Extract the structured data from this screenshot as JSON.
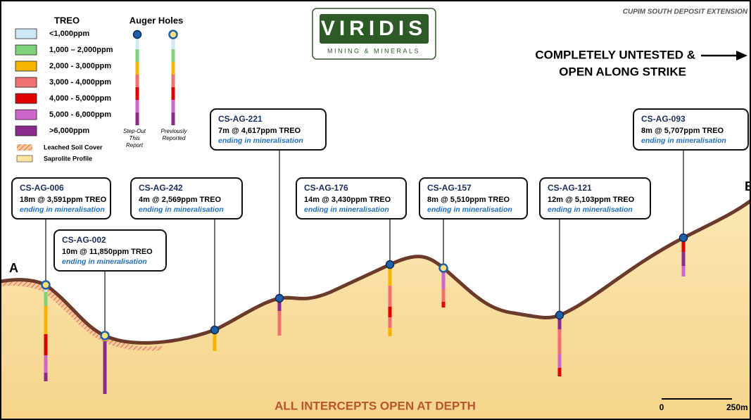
{
  "header": "CUPIM SOUTH DEPOSIT EXTENSION",
  "logo": {
    "name": "VIRIDIS",
    "tagline": "MINING & MINERALS"
  },
  "note": [
    "COMPLETELY UNTESTED &",
    "OPEN ALONG STRIKE"
  ],
  "section_ends": {
    "start": "A",
    "end": "B"
  },
  "legend": {
    "treo_title": "TREO",
    "auger_title": "Auger Holes",
    "items": [
      {
        "label": "<1,000ppm",
        "color": "#cfe8f7"
      },
      {
        "label": "1,000 – 2,000ppm",
        "color": "#7fd17a"
      },
      {
        "label": "2,000 - 3,000ppm",
        "color": "#f5b400"
      },
      {
        "label": "3,000 - 4,000ppm",
        "color": "#f07070"
      },
      {
        "label": "4,000 - 5,000ppm",
        "color": "#e00000"
      },
      {
        "label": "5,000 - 6,000ppm",
        "color": "#cc66cc"
      },
      {
        "label": ">6,000ppm",
        "color": "#8b2a8b"
      }
    ],
    "leached": "Leached Soil Cover",
    "saprolite": "Saprolite Profile",
    "step_out": [
      "Step-Out",
      "This",
      "Report"
    ],
    "previously": [
      "Previously",
      "Reported"
    ]
  },
  "holes": [
    {
      "id": "CS-AG-006",
      "result": "18m @ 3,591ppm TREO",
      "note": "ending in mineralisation"
    },
    {
      "id": "CS-AG-002",
      "result": "10m @ 11,850ppm TREO",
      "note": "ending in mineralisation"
    },
    {
      "id": "CS-AG-242",
      "result": "4m @ 2,569ppm TREO",
      "note": "ending in mineralisation"
    },
    {
      "id": "CS-AG-221",
      "result": "7m @ 4,617ppm TREO",
      "note": "ending in mineralisation"
    },
    {
      "id": "CS-AG-176",
      "result": "14m @ 3,430ppm TREO",
      "note": "ending in mineralisation"
    },
    {
      "id": "CS-AG-157",
      "result": "8m @ 5,510ppm TREO",
      "note": "ending in mineralisation"
    },
    {
      "id": "CS-AG-121",
      "result": "12m @ 5,103ppm TREO",
      "note": "ending in mineralisation"
    },
    {
      "id": "CS-AG-093",
      "result": "8m @ 5,707ppm TREO",
      "note": "ending in mineralisation"
    }
  ],
  "footer": "ALL INTERCEPTS OPEN AT DEPTH",
  "scale": {
    "start": "0",
    "end": "250m"
  }
}
